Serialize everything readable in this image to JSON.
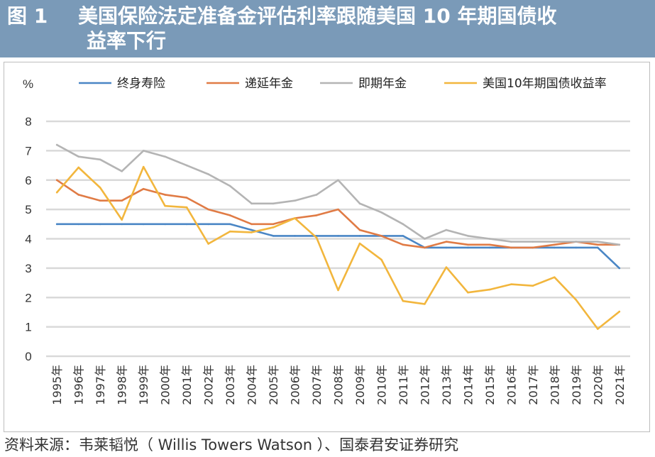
{
  "title": {
    "figure_label": "图 1",
    "line1": "美国保险法定准备金评估利率跟随美国 10 年期国债收",
    "line2": "益率下行"
  },
  "source": "资料来源：韦莱韬悦（ Willis Towers Watson ）、国泰君安证券研究",
  "chart_data": {
    "type": "line",
    "ylabel": "%",
    "ylim": [
      0,
      8
    ],
    "yticks": [
      0,
      1,
      2,
      3,
      4,
      5,
      6,
      7,
      8
    ],
    "grid": true,
    "legend_position": "top",
    "categories": [
      "1995年",
      "1996年",
      "1997年",
      "1998年",
      "1999年",
      "2000年",
      "2001年",
      "2002年",
      "2003年",
      "2004年",
      "2005年",
      "2006年",
      "2007年",
      "2008年",
      "2009年",
      "2010年",
      "2011年",
      "2012年",
      "2013年",
      "2014年",
      "2015年",
      "2016年",
      "2017年",
      "2018年",
      "2019年",
      "2020年",
      "2021年"
    ],
    "series": [
      {
        "name": "终身寿险",
        "color": "#4a86c5",
        "values": [
          4.5,
          4.5,
          4.5,
          4.5,
          4.5,
          4.5,
          4.5,
          4.5,
          4.5,
          4.3,
          4.1,
          4.1,
          4.1,
          4.1,
          4.1,
          4.1,
          4.1,
          3.7,
          3.7,
          3.7,
          3.7,
          3.7,
          3.7,
          3.7,
          3.7,
          3.7,
          3.0
        ]
      },
      {
        "name": "递延年金",
        "color": "#e07b45",
        "values": [
          6.0,
          5.5,
          5.3,
          5.3,
          5.7,
          5.5,
          5.4,
          5.0,
          4.8,
          4.5,
          4.5,
          4.7,
          4.8,
          5.0,
          4.3,
          4.1,
          3.8,
          3.7,
          3.9,
          3.8,
          3.8,
          3.7,
          3.7,
          3.8,
          3.9,
          3.8,
          3.8
        ]
      },
      {
        "name": "即期年金",
        "color": "#b4b4b4",
        "values": [
          7.2,
          6.8,
          6.7,
          6.3,
          7.0,
          6.8,
          6.5,
          6.2,
          5.8,
          5.2,
          5.2,
          5.3,
          5.5,
          6.0,
          5.2,
          4.9,
          4.5,
          4.0,
          4.3,
          4.1,
          4.0,
          3.9,
          3.9,
          3.9,
          3.9,
          3.9,
          3.8
        ]
      },
      {
        "name": "美国10年期国债收益率",
        "color": "#f2b63d",
        "values": [
          5.58,
          6.43,
          5.74,
          4.65,
          6.45,
          5.12,
          5.07,
          3.83,
          4.25,
          4.22,
          4.39,
          4.7,
          4.04,
          2.25,
          3.84,
          3.29,
          1.88,
          1.78,
          3.03,
          2.17,
          2.27,
          2.45,
          2.4,
          2.69,
          1.92,
          0.93,
          1.52
        ]
      }
    ]
  }
}
